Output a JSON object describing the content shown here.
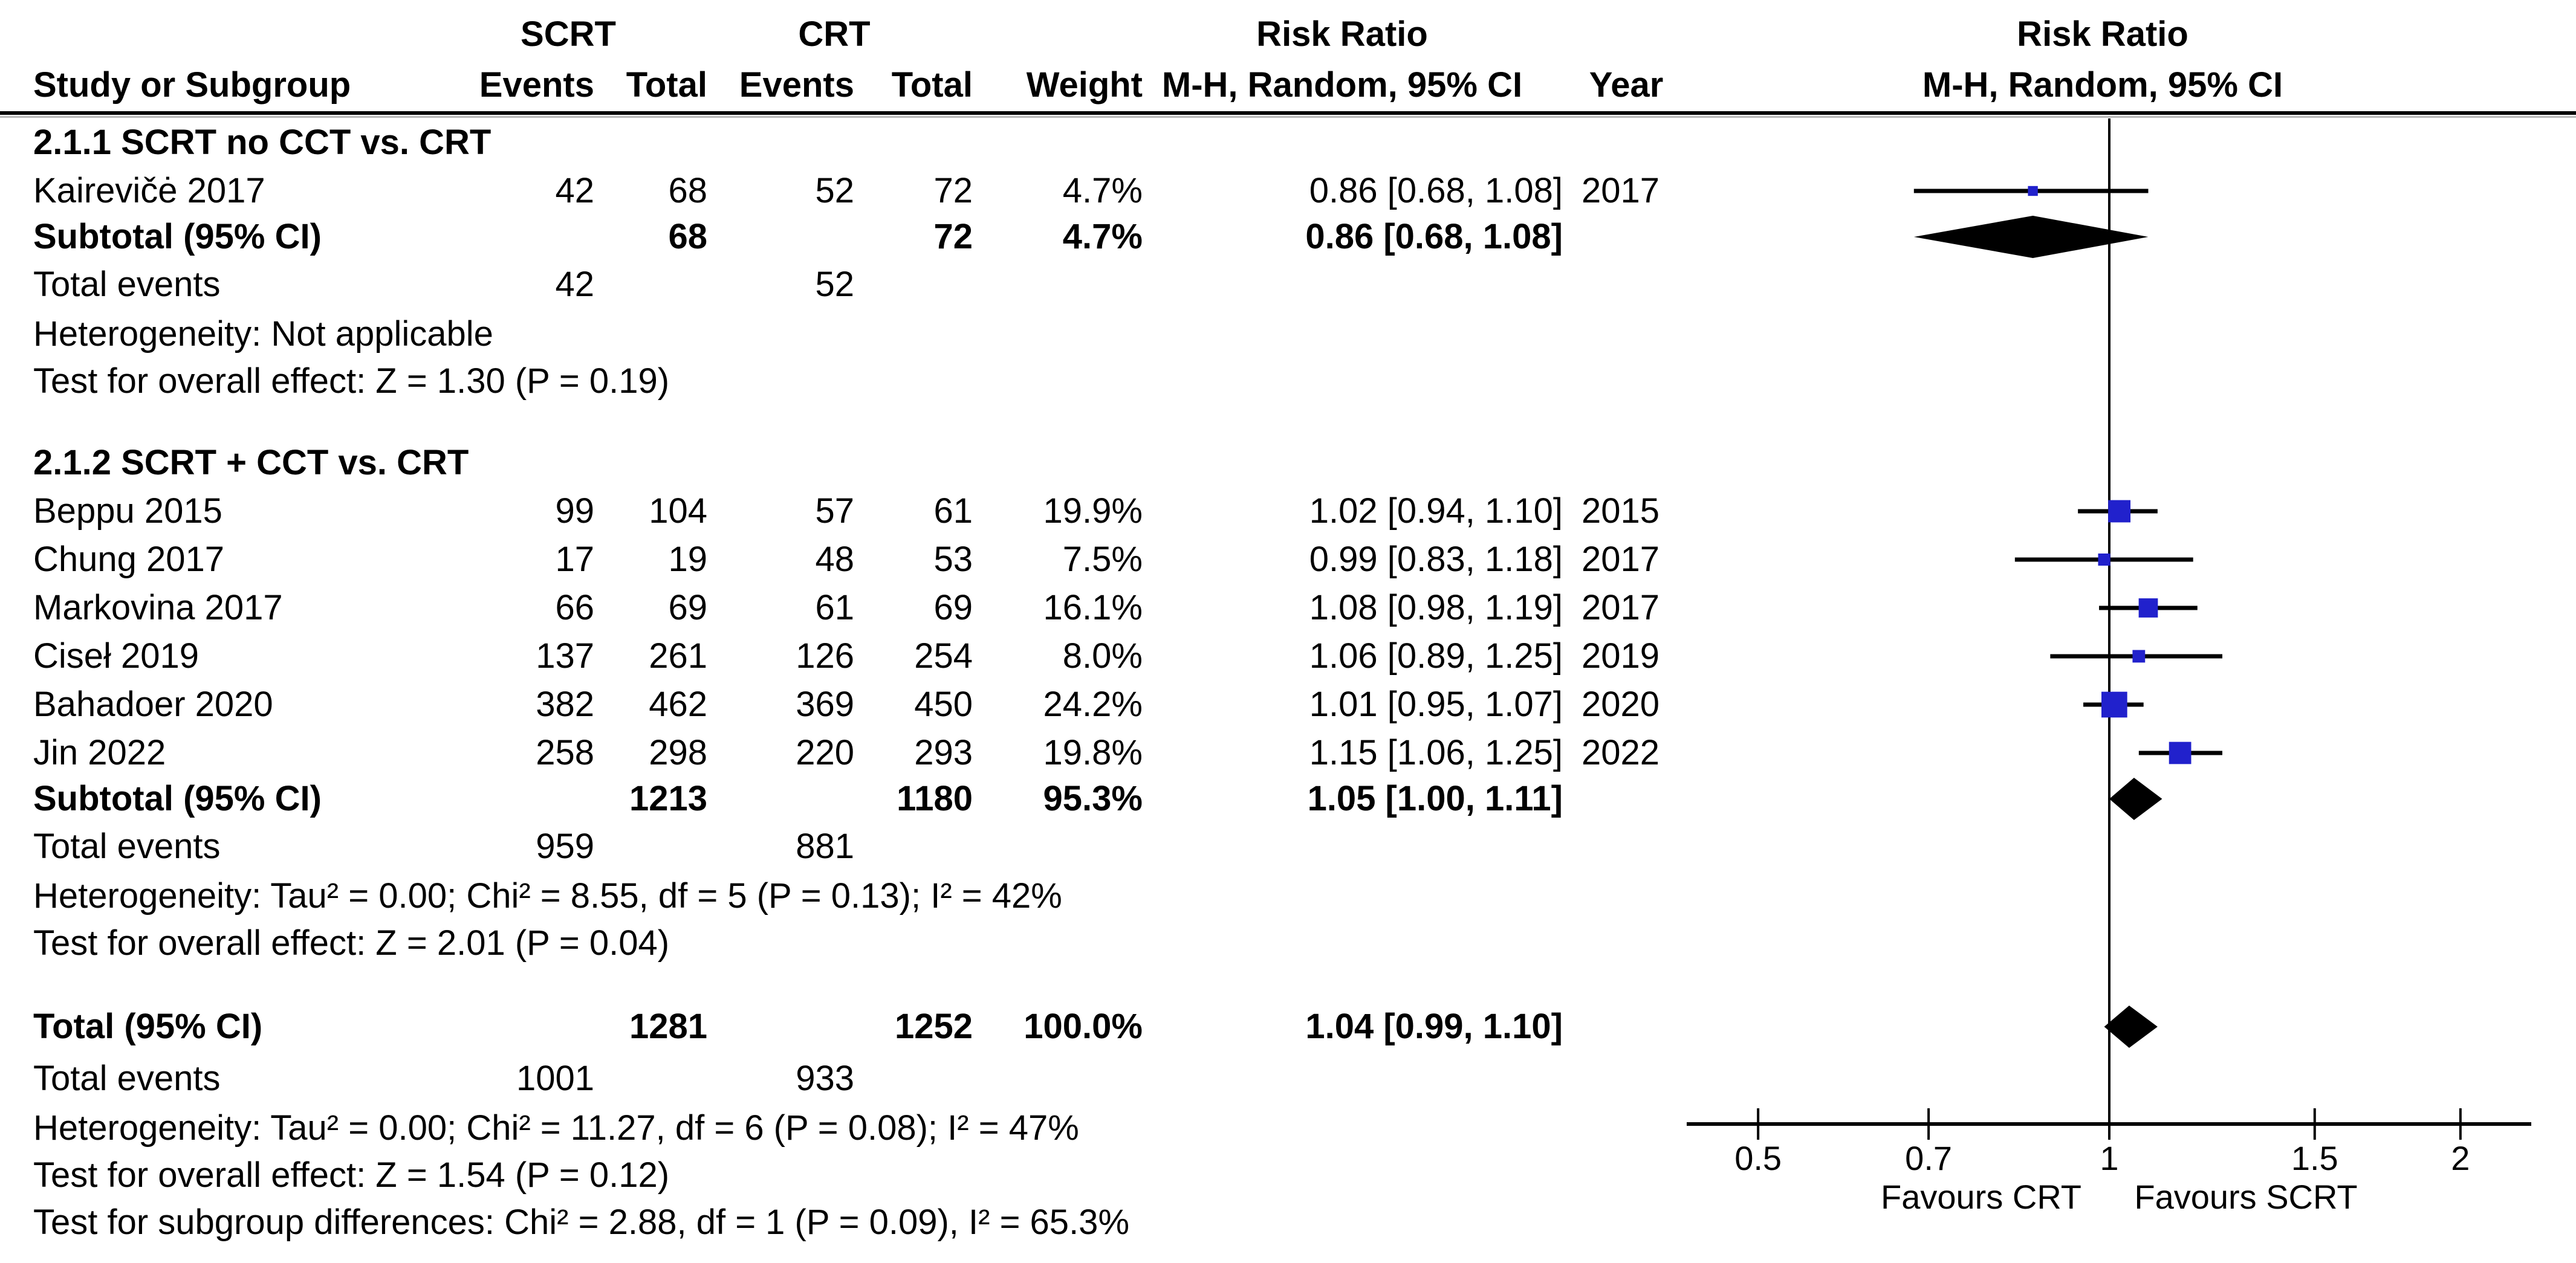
{
  "header": {
    "scrt_group": "SCRT",
    "crt_group": "CRT",
    "risk_ratio_left": "Risk Ratio",
    "risk_ratio_right": "Risk Ratio",
    "col_study": "Study or Subgroup",
    "col_events": "Events",
    "col_total": "Total",
    "col_events2": "Events",
    "col_total2": "Total",
    "col_weight": "Weight",
    "col_mh_left": "M-H, Random, 95% CI",
    "col_year": "Year",
    "col_mh_right": "M-H, Random, 95% CI"
  },
  "colors": {
    "marker_blue": "#2121CC",
    "line_black": "#000000"
  },
  "rows": [
    {
      "kind": "group",
      "cells": {
        "study": "2.1.1 SCRT no CCT vs. CRT"
      }
    },
    {
      "kind": "study",
      "cells": {
        "study": "Kairevičė 2017",
        "e1": "42",
        "t1": "68",
        "e2": "52",
        "t2": "72",
        "weight": "4.7%",
        "ci": "0.86 [0.68, 1.08]",
        "year": "2017"
      }
    },
    {
      "kind": "subtotal",
      "cells": {
        "study": "Subtotal (95% CI)",
        "t1": "68",
        "t2": "72",
        "weight": "4.7%",
        "ci": "0.86 [0.68, 1.08]"
      }
    },
    {
      "kind": "events",
      "cells": {
        "study": "Total events",
        "e1": "42",
        "e2": "52"
      }
    },
    {
      "kind": "note",
      "text": "Heterogeneity: Not applicable"
    },
    {
      "kind": "note",
      "text": "Test for overall effect: Z = 1.30 (P = 0.19)"
    },
    {
      "kind": "spacer"
    },
    {
      "kind": "group",
      "cells": {
        "study": "2.1.2 SCRT + CCT vs. CRT"
      }
    },
    {
      "kind": "study",
      "cells": {
        "study": "Beppu 2015",
        "e1": "99",
        "t1": "104",
        "e2": "57",
        "t2": "61",
        "weight": "19.9%",
        "ci": "1.02 [0.94, 1.10]",
        "year": "2015"
      }
    },
    {
      "kind": "study",
      "cells": {
        "study": "Chung 2017",
        "e1": "17",
        "t1": "19",
        "e2": "48",
        "t2": "53",
        "weight": "7.5%",
        "ci": "0.99 [0.83, 1.18]",
        "year": "2017"
      }
    },
    {
      "kind": "study",
      "cells": {
        "study": "Markovina 2017",
        "e1": "66",
        "t1": "69",
        "e2": "61",
        "t2": "69",
        "weight": "16.1%",
        "ci": "1.08 [0.98, 1.19]",
        "year": "2017"
      }
    },
    {
      "kind": "study",
      "cells": {
        "study": "Ciseł 2019",
        "e1": "137",
        "t1": "261",
        "e2": "126",
        "t2": "254",
        "weight": "8.0%",
        "ci": "1.06 [0.89, 1.25]",
        "year": "2019"
      }
    },
    {
      "kind": "study",
      "cells": {
        "study": "Bahadoer 2020",
        "e1": "382",
        "t1": "462",
        "e2": "369",
        "t2": "450",
        "weight": "24.2%",
        "ci": "1.01 [0.95, 1.07]",
        "year": "2020"
      }
    },
    {
      "kind": "study",
      "cells": {
        "study": "Jin 2022",
        "e1": "258",
        "t1": "298",
        "e2": "220",
        "t2": "293",
        "weight": "19.8%",
        "ci": "1.15 [1.06, 1.25]",
        "year": "2022"
      }
    },
    {
      "kind": "subtotal",
      "cells": {
        "study": "Subtotal (95% CI)",
        "t1": "1213",
        "t2": "1180",
        "weight": "95.3%",
        "ci": "1.05 [1.00, 1.11]"
      }
    },
    {
      "kind": "events",
      "cells": {
        "study": "Total events",
        "e1": "959",
        "e2": "881"
      }
    },
    {
      "kind": "note",
      "text": "Heterogeneity: Tau² = 0.00; Chi² = 8.55, df = 5 (P = 0.13); I² = 42%"
    },
    {
      "kind": "note",
      "text": "Test for overall effect: Z = 2.01 (P = 0.04)"
    },
    {
      "kind": "spacer"
    },
    {
      "kind": "total",
      "cells": {
        "study": "Total (95% CI)",
        "t1": "1281",
        "t2": "1252",
        "weight": "100.0%",
        "ci": "1.04 [0.99, 1.10]"
      }
    },
    {
      "kind": "events",
      "cells": {
        "study": "Total events",
        "e1": "1001",
        "e2": "933"
      }
    },
    {
      "kind": "note",
      "text": "Heterogeneity: Tau² = 0.00; Chi² = 11.27, df = 6 (P = 0.08); I² = 47%"
    },
    {
      "kind": "note",
      "text": "Test for overall effect: Z = 1.54 (P = 0.12)"
    },
    {
      "kind": "note",
      "text": "Test for subgroup differences: Chi² = 2.88, df = 1 (P = 0.09), I² = 65.3%"
    }
  ],
  "chart_data": {
    "type": "forest",
    "effect_measure": "Risk Ratio",
    "method": "M-H, Random, 95% CI",
    "x_scale": "log",
    "null_line": 1,
    "ticks": [
      {
        "value": 0.5,
        "label": "0.5"
      },
      {
        "value": 0.7,
        "label": "0.7"
      },
      {
        "value": 1,
        "label": "1"
      },
      {
        "value": 1.5,
        "label": "1.5"
      },
      {
        "value": 2,
        "label": "2"
      }
    ],
    "favours_left": "Favours CRT",
    "favours_right": "Favours SCRT",
    "points": [
      {
        "label": "Kairevičė 2017",
        "row": 1,
        "marker": "square",
        "rr": 0.86,
        "lo": 0.68,
        "hi": 1.08,
        "weight_pct": 4.7,
        "year": 2017
      },
      {
        "label": "Subtotal 2.1.1 (95% CI)",
        "row": 2,
        "marker": "diamond",
        "rr": 0.86,
        "lo": 0.68,
        "hi": 1.08,
        "weight_pct": 4.7
      },
      {
        "label": "Beppu 2015",
        "row": 8,
        "marker": "square",
        "rr": 1.02,
        "lo": 0.94,
        "hi": 1.1,
        "weight_pct": 19.9,
        "year": 2015
      },
      {
        "label": "Chung 2017",
        "row": 9,
        "marker": "square",
        "rr": 0.99,
        "lo": 0.83,
        "hi": 1.18,
        "weight_pct": 7.5,
        "year": 2017
      },
      {
        "label": "Markovina 2017",
        "row": 10,
        "marker": "square",
        "rr": 1.08,
        "lo": 0.98,
        "hi": 1.19,
        "weight_pct": 16.1,
        "year": 2017
      },
      {
        "label": "Ciseł 2019",
        "row": 11,
        "marker": "square",
        "rr": 1.06,
        "lo": 0.89,
        "hi": 1.25,
        "weight_pct": 8.0,
        "year": 2019
      },
      {
        "label": "Bahadoer 2020",
        "row": 12,
        "marker": "square",
        "rr": 1.01,
        "lo": 0.95,
        "hi": 1.07,
        "weight_pct": 24.2,
        "year": 2020
      },
      {
        "label": "Jin 2022",
        "row": 13,
        "marker": "square",
        "rr": 1.15,
        "lo": 1.06,
        "hi": 1.25,
        "weight_pct": 19.8,
        "year": 2022
      },
      {
        "label": "Subtotal 2.1.2 (95% CI)",
        "row": 14,
        "marker": "diamond",
        "rr": 1.05,
        "lo": 1.0,
        "hi": 1.11,
        "weight_pct": 95.3
      },
      {
        "label": "Total (95% CI)",
        "row": 19,
        "marker": "diamond",
        "rr": 1.04,
        "lo": 0.99,
        "hi": 1.1,
        "weight_pct": 100.0
      }
    ]
  }
}
